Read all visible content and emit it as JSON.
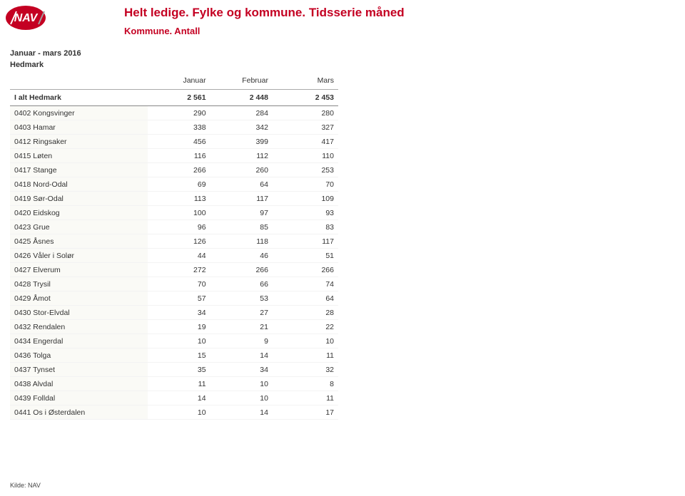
{
  "logo": {
    "text": "NAV",
    "bg": "#c40022",
    "fg": "#ffffff"
  },
  "title_main": "Helt ledige. Fylke og kommune. Tidsserie måned",
  "title_sub": "Kommune. Antall",
  "period": "Januar - mars 2016",
  "region": "Hedmark",
  "columns": [
    "",
    "Januar",
    "Februar",
    "Mars"
  ],
  "summary": {
    "label": "I alt Hedmark",
    "values": [
      "2 561",
      "2 448",
      "2 453"
    ]
  },
  "rows": [
    {
      "label": "0402 Kongsvinger",
      "values": [
        "290",
        "284",
        "280"
      ]
    },
    {
      "label": "0403 Hamar",
      "values": [
        "338",
        "342",
        "327"
      ]
    },
    {
      "label": "0412 Ringsaker",
      "values": [
        "456",
        "399",
        "417"
      ]
    },
    {
      "label": "0415 Løten",
      "values": [
        "116",
        "112",
        "110"
      ]
    },
    {
      "label": "0417 Stange",
      "values": [
        "266",
        "260",
        "253"
      ]
    },
    {
      "label": "0418 Nord-Odal",
      "values": [
        "69",
        "64",
        "70"
      ]
    },
    {
      "label": "0419 Sør-Odal",
      "values": [
        "113",
        "117",
        "109"
      ]
    },
    {
      "label": "0420 Eidskog",
      "values": [
        "100",
        "97",
        "93"
      ]
    },
    {
      "label": "0423 Grue",
      "values": [
        "96",
        "85",
        "83"
      ]
    },
    {
      "label": "0425 Åsnes",
      "values": [
        "126",
        "118",
        "117"
      ]
    },
    {
      "label": "0426 Våler i Solør",
      "values": [
        "44",
        "46",
        "51"
      ]
    },
    {
      "label": "0427 Elverum",
      "values": [
        "272",
        "266",
        "266"
      ]
    },
    {
      "label": "0428 Trysil",
      "values": [
        "70",
        "66",
        "74"
      ]
    },
    {
      "label": "0429 Åmot",
      "values": [
        "57",
        "53",
        "64"
      ]
    },
    {
      "label": "0430 Stor-Elvdal",
      "values": [
        "34",
        "27",
        "28"
      ]
    },
    {
      "label": "0432 Rendalen",
      "values": [
        "19",
        "21",
        "22"
      ]
    },
    {
      "label": "0434 Engerdal",
      "values": [
        "10",
        "9",
        "10"
      ]
    },
    {
      "label": "0436 Tolga",
      "values": [
        "15",
        "14",
        "11"
      ]
    },
    {
      "label": "0437 Tynset",
      "values": [
        "35",
        "34",
        "32"
      ]
    },
    {
      "label": "0438 Alvdal",
      "values": [
        "11",
        "10",
        "8"
      ]
    },
    {
      "label": "0439 Folldal",
      "values": [
        "14",
        "10",
        "11"
      ]
    },
    {
      "label": "0441 Os i Østerdalen",
      "values": [
        "10",
        "14",
        "17"
      ]
    }
  ],
  "source": "Kilde: NAV",
  "col_widths": [
    "42%",
    "19%",
    "19%",
    "20%"
  ]
}
